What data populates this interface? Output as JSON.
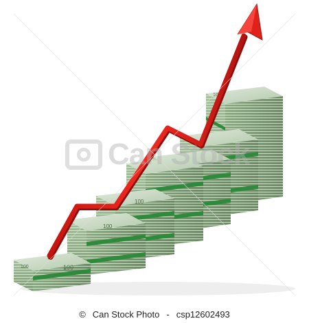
{
  "image": {
    "subject": "stacks of euro banknotes rising like a bar chart with a red upward arrow",
    "banknote_denomination": "100",
    "banknote_color": "#a9c3a0",
    "band_color": "#2f8a3c",
    "arrow_color": "#e0201b"
  },
  "watermark": {
    "text": "Can Stock",
    "icon": "camera-icon"
  },
  "footer": {
    "copyright_symbol": "©",
    "brand": "Can Stock Photo",
    "separator": "-",
    "image_id": "csp12602493"
  }
}
